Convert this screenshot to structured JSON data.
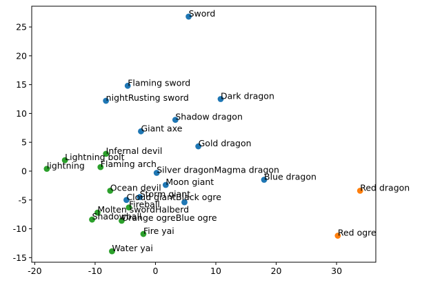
{
  "chart_data": {
    "type": "scatter",
    "title": "",
    "xlabel": "",
    "ylabel": "",
    "xlim": [
      -20.5,
      36.5
    ],
    "ylim": [
      -15.8,
      28.6
    ],
    "xticks": [
      "-20",
      "-10",
      "0",
      "10",
      "20",
      "30"
    ],
    "yticks": [
      "-15",
      "-10",
      "-5",
      "0",
      "5",
      "10",
      "15",
      "20",
      "25"
    ],
    "xtick_values": [
      -20,
      -10,
      0,
      10,
      20,
      30
    ],
    "ytick_values": [
      -15,
      -10,
      -5,
      0,
      5,
      10,
      15,
      20,
      25
    ],
    "grid": false,
    "legend": "none",
    "series": [
      {
        "color": "#1f77b4",
        "points": [
          {
            "label": "Sword",
            "x": 5.5,
            "y": 26.8
          },
          {
            "label": "Flaming sword",
            "x": -4.6,
            "y": 14.8
          },
          {
            "label": "nightRusting sword",
            "x": -8.2,
            "y": 12.2
          },
          {
            "label": "Dark dragon",
            "x": 10.8,
            "y": 12.5
          },
          {
            "label": "Shadow dragon",
            "x": 3.3,
            "y": 8.9
          },
          {
            "label": "Giant axe",
            "x": -2.4,
            "y": 6.9
          },
          {
            "label": "Gold dragon",
            "x": 7.1,
            "y": 4.3
          },
          {
            "label": "Silver dragonMagma dragon",
            "x": 0.2,
            "y": -0.3
          },
          {
            "label": "Moon giant",
            "x": 1.7,
            "y": -2.4
          },
          {
            "label": "Blue dragon",
            "x": 18.0,
            "y": -1.5
          },
          {
            "label": "Storm giant",
            "x": -2.6,
            "y": -4.5
          },
          {
            "label": "Cloud giantBlack ogre",
            "x": -4.8,
            "y": -5.0
          },
          {
            "label": "",
            "x": 4.8,
            "y": -5.4
          }
        ]
      },
      {
        "color": "#ff7f0e",
        "points": [
          {
            "label": "Red dragon",
            "x": 33.9,
            "y": -3.4
          },
          {
            "label": "Red ogre",
            "x": 30.2,
            "y": -11.2
          }
        ]
      },
      {
        "color": "#2ca02c",
        "points": [
          {
            "label": "Infernal devil",
            "x": -8.2,
            "y": 3.0
          },
          {
            "label": "Lightning bolt",
            "x": -15.0,
            "y": 1.9
          },
          {
            "label": "lightning",
            "x": -18.0,
            "y": 0.4
          },
          {
            "label": "Flaming arch",
            "x": -9.1,
            "y": 0.7
          },
          {
            "label": "Ocean devil",
            "x": -7.5,
            "y": -3.4
          },
          {
            "label": "Fireball",
            "x": -4.4,
            "y": -6.3
          },
          {
            "label": "Molten swordHalberd",
            "x": -9.6,
            "y": -7.2
          },
          {
            "label": "Shadowball",
            "x": -10.5,
            "y": -8.4
          },
          {
            "label": "Orange ogreBlue ogre",
            "x": -5.6,
            "y": -8.6
          },
          {
            "label": "Fire yai",
            "x": -2.0,
            "y": -10.9
          },
          {
            "label": "Water yai",
            "x": -7.2,
            "y": -13.9
          }
        ]
      }
    ]
  }
}
